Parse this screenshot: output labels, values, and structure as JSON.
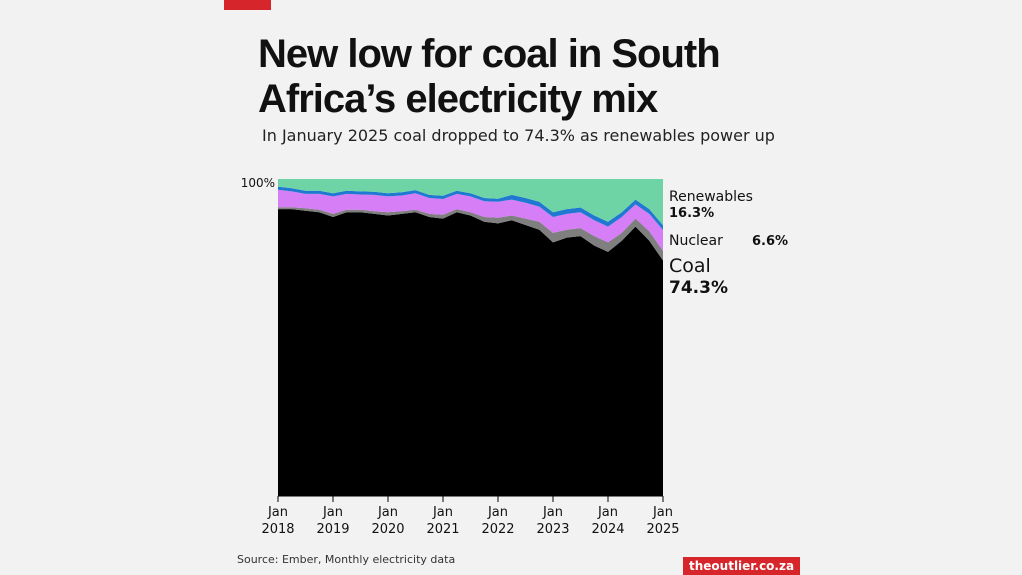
{
  "title": "New low for coal in South Africa’s electricity mix",
  "subtitle": "In January 2025 coal dropped to 74.3% as renewables power up",
  "source": "Source: Ember, Monthly electricity data",
  "brand": "theoutlier.co.za",
  "colors": {
    "background": "#f2f2f2",
    "coal": "#000000",
    "gas": "#7f7f7f",
    "nuclear": "#d57ef5",
    "hydro": "#1f78d1",
    "renewables": "#6fd4a5",
    "brand": "#d7262b"
  },
  "chart_data": {
    "type": "area",
    "stacked": true,
    "ylim": [
      0,
      100
    ],
    "y_tick_label": "100%",
    "x_tick_labels": [
      [
        "Jan",
        "2018"
      ],
      [
        "Jan",
        "2019"
      ],
      [
        "Jan",
        "2020"
      ],
      [
        "Jan",
        "2021"
      ],
      [
        "Jan",
        "2022"
      ],
      [
        "Jan",
        "2023"
      ],
      [
        "Jan",
        "2024"
      ],
      [
        "Jan",
        "2025"
      ]
    ],
    "x": [
      2018.0,
      2018.25,
      2018.5,
      2018.75,
      2019.0,
      2019.25,
      2019.5,
      2019.75,
      2020.0,
      2020.25,
      2020.5,
      2020.75,
      2021.0,
      2021.25,
      2021.5,
      2021.75,
      2022.0,
      2022.25,
      2022.5,
      2022.75,
      2023.0,
      2023.25,
      2023.5,
      2023.75,
      2024.0,
      2024.25,
      2024.5,
      2024.75,
      2025.0
    ],
    "series": [
      {
        "name": "Coal",
        "key": "coal",
        "values": [
          90.5,
          90.5,
          90.0,
          89.5,
          88.0,
          89.5,
          89.5,
          89.0,
          88.5,
          89.0,
          89.5,
          88.0,
          87.5,
          89.5,
          88.5,
          86.5,
          86.0,
          87.0,
          85.5,
          84.0,
          80.0,
          81.5,
          82.0,
          79.0,
          77.0,
          80.5,
          85.0,
          80.5,
          74.3
        ]
      },
      {
        "key": "gas",
        "values": [
          0.6,
          0.6,
          0.8,
          0.8,
          1.0,
          0.8,
          0.8,
          0.8,
          1.0,
          0.8,
          0.8,
          1.0,
          1.2,
          1.0,
          1.0,
          1.5,
          1.8,
          1.5,
          2.0,
          2.5,
          3.0,
          2.5,
          2.5,
          3.0,
          3.0,
          2.5,
          2.5,
          3.0,
          3.0
        ]
      },
      {
        "name": "Nuclear",
        "key": "nuclear",
        "values": [
          5.5,
          5.0,
          4.5,
          5.0,
          5.5,
          5.0,
          4.8,
          5.2,
          5.0,
          5.0,
          5.2,
          5.0,
          5.0,
          4.8,
          5.0,
          5.0,
          5.0,
          5.0,
          5.0,
          4.8,
          5.0,
          5.0,
          5.0,
          5.0,
          5.0,
          5.0,
          4.5,
          5.5,
          6.6
        ]
      },
      {
        "key": "hydro",
        "values": [
          1.0,
          1.0,
          1.0,
          1.0,
          1.0,
          1.0,
          1.0,
          1.0,
          1.0,
          1.0,
          1.0,
          1.0,
          1.0,
          1.0,
          1.0,
          1.0,
          1.0,
          1.5,
          1.5,
          1.5,
          1.5,
          1.5,
          1.5,
          1.5,
          1.5,
          1.5,
          1.5,
          1.5,
          1.5
        ]
      },
      {
        "name": "Renewables",
        "key": "renewables",
        "values": [
          2.4,
          2.9,
          3.7,
          3.7,
          4.5,
          3.7,
          3.9,
          4.0,
          4.5,
          4.2,
          3.5,
          5.0,
          5.3,
          3.7,
          4.5,
          6.0,
          6.2,
          5.0,
          6.0,
          7.2,
          10.5,
          9.5,
          9.0,
          11.5,
          13.5,
          10.5,
          6.5,
          9.5,
          16.3
        ]
      }
    ],
    "labels": [
      {
        "series": "renewables",
        "name": "Renewables",
        "value": "16.3%"
      },
      {
        "series": "nuclear",
        "name": "Nuclear",
        "value": "6.6%"
      },
      {
        "series": "coal",
        "name": "Coal",
        "value": "74.3%"
      }
    ]
  }
}
